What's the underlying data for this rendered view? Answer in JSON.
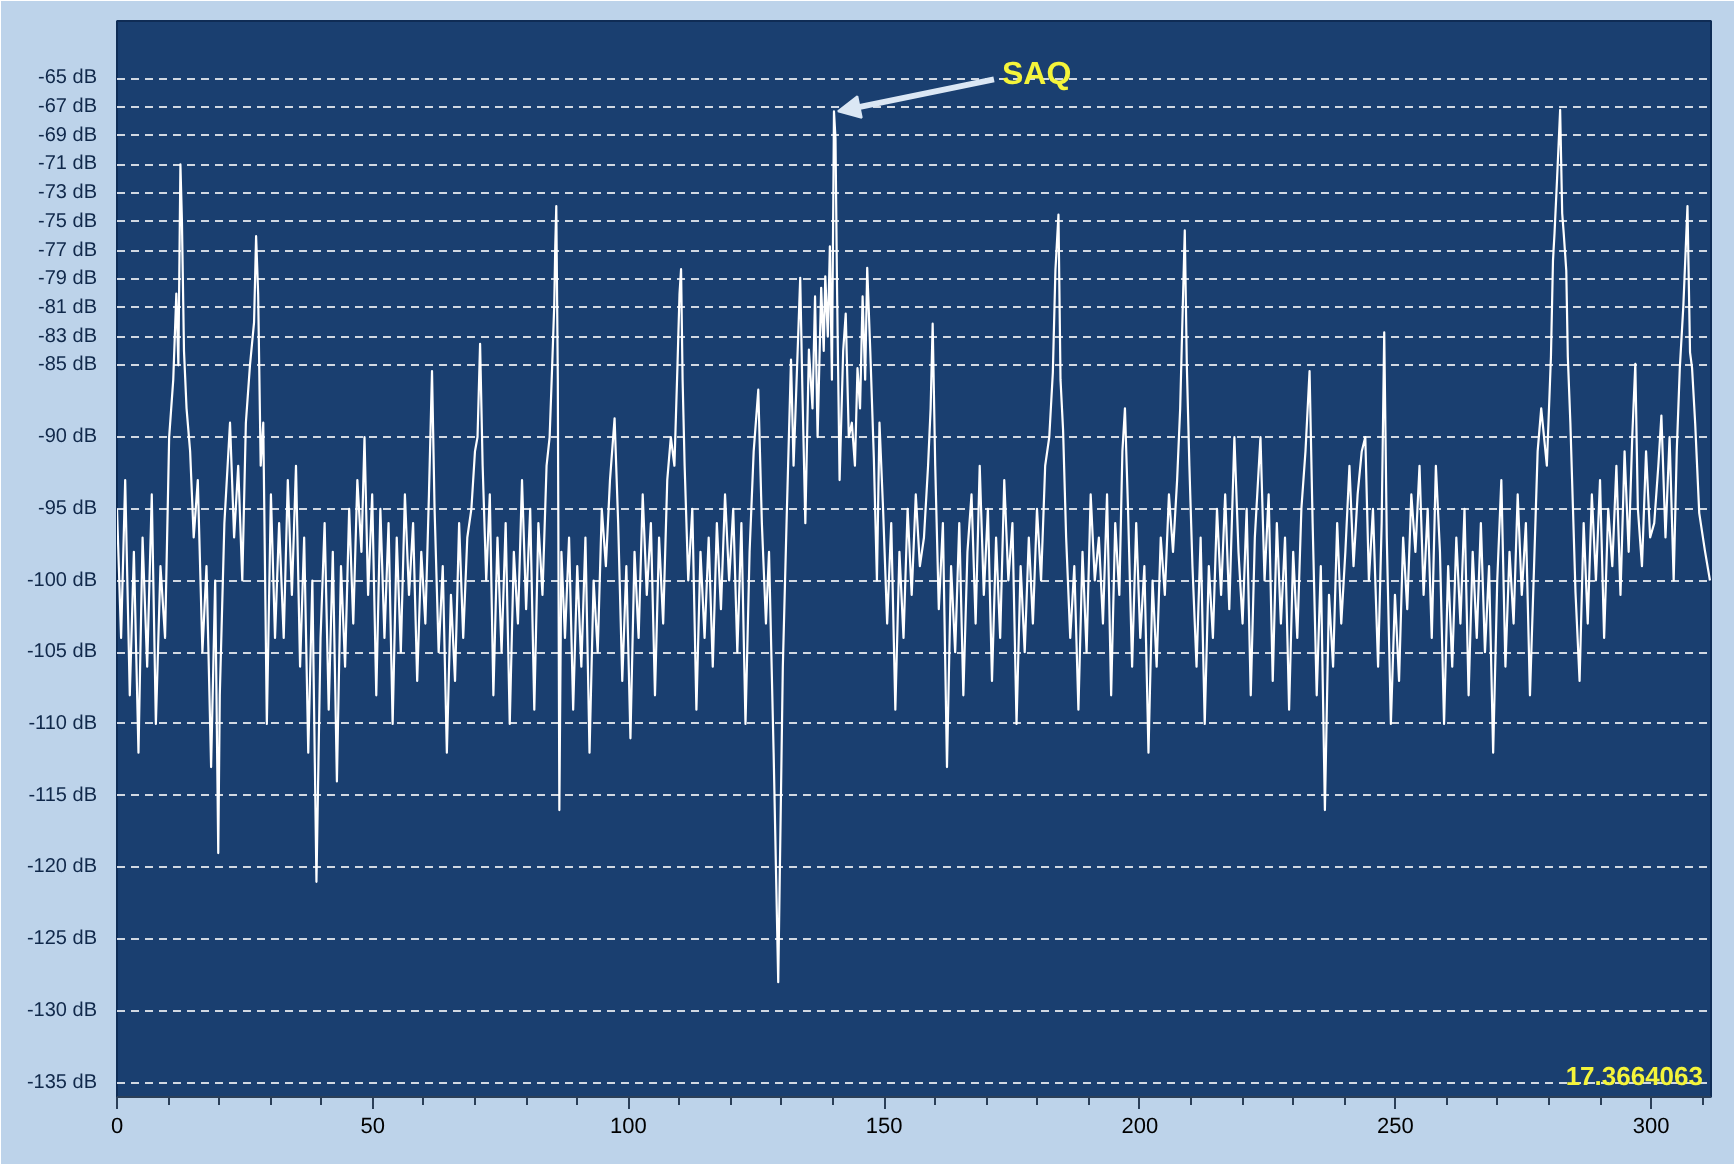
{
  "chart_data": {
    "type": "line",
    "x": [
      0.0,
      0.8,
      1.6,
      2.5,
      3.3,
      4.2,
      5.0,
      5.9,
      6.8,
      7.6,
      8.5,
      9.4,
      10.2,
      11.0,
      11.6,
      12.0,
      12.4,
      12.7,
      13.1,
      13.6,
      14.3,
      15.0,
      15.8,
      16.7,
      17.5,
      18.4,
      19.2,
      19.8,
      20.1,
      21.0,
      22.1,
      22.9,
      23.7,
      24.5,
      25.2,
      26.0,
      26.8,
      27.2,
      27.6,
      28.1,
      28.6,
      29.3,
      30.1,
      30.9,
      31.7,
      32.6,
      33.4,
      34.2,
      35.0,
      35.8,
      36.6,
      37.4,
      38.2,
      39.0,
      39.8,
      40.6,
      41.4,
      42.2,
      43.0,
      43.8,
      44.6,
      45.4,
      46.2,
      47.0,
      47.8,
      48.4,
      49.1,
      49.9,
      50.7,
      51.5,
      52.3,
      53.1,
      53.9,
      54.7,
      55.5,
      56.3,
      57.1,
      57.9,
      58.7,
      59.5,
      60.3,
      61.0,
      61.6,
      62.1,
      62.9,
      63.7,
      64.5,
      65.3,
      66.1,
      66.9,
      67.7,
      68.5,
      69.3,
      70.0,
      70.5,
      71.0,
      71.5,
      72.2,
      72.9,
      73.6,
      74.4,
      75.2,
      76.0,
      76.8,
      77.6,
      78.4,
      79.2,
      80.0,
      80.8,
      81.6,
      82.4,
      83.2,
      84.0,
      84.6,
      85.1,
      85.5,
      85.7,
      85.9,
      86.2,
      86.5,
      86.9,
      87.6,
      88.4,
      89.2,
      90.0,
      90.8,
      91.6,
      92.4,
      93.2,
      94.0,
      94.8,
      95.6,
      96.4,
      97.3,
      98.0,
      98.8,
      99.6,
      100.4,
      101.2,
      102.0,
      102.8,
      103.6,
      104.4,
      105.2,
      106.0,
      106.8,
      107.6,
      108.3,
      109.0,
      109.6,
      110.0,
      110.3,
      110.6,
      111.0,
      111.7,
      112.5,
      113.3,
      114.1,
      114.9,
      115.7,
      116.5,
      117.3,
      118.1,
      118.9,
      119.7,
      120.5,
      121.3,
      122.1,
      122.9,
      123.7,
      124.5,
      125.4,
      126.1,
      126.9,
      127.5,
      128.4,
      129.3,
      130.2,
      131.0,
      131.8,
      132.3,
      132.8,
      133.6,
      134.0,
      134.6,
      135.3,
      136.0,
      136.5,
      137.0,
      137.7,
      138.2,
      138.5,
      139.0,
      139.4,
      139.8,
      140.2,
      140.5,
      140.8,
      141.3,
      142.0,
      142.5,
      143.1,
      143.7,
      144.3,
      144.8,
      145.3,
      145.8,
      146.3,
      146.7,
      147.3,
      148.0,
      148.6,
      149.1,
      149.8,
      150.6,
      151.4,
      152.2,
      153.0,
      153.8,
      154.6,
      155.4,
      156.2,
      157.0,
      157.8,
      158.6,
      159.1,
      159.5,
      160.0,
      160.7,
      161.5,
      162.3,
      163.1,
      163.9,
      164.7,
      165.5,
      166.3,
      167.1,
      167.9,
      168.7,
      169.5,
      170.3,
      171.1,
      171.9,
      172.7,
      173.5,
      174.3,
      175.1,
      175.9,
      176.7,
      177.5,
      178.3,
      179.1,
      179.9,
      180.7,
      181.5,
      182.3,
      183.0,
      183.5,
      184.1,
      184.5,
      185.0,
      185.6,
      186.4,
      187.2,
      188.0,
      188.8,
      189.6,
      190.4,
      191.2,
      192.0,
      192.8,
      193.6,
      194.4,
      195.2,
      196.0,
      196.6,
      197.1,
      197.7,
      198.5,
      199.3,
      200.1,
      200.9,
      201.7,
      202.5,
      203.3,
      204.1,
      204.9,
      205.7,
      206.5,
      207.3,
      207.9,
      208.4,
      208.8,
      209.2,
      209.7,
      210.3,
      211.1,
      211.9,
      212.7,
      213.5,
      214.3,
      215.1,
      215.9,
      216.7,
      217.5,
      218.5,
      219.3,
      220.1,
      220.9,
      221.7,
      222.5,
      223.6,
      224.4,
      225.2,
      226.0,
      226.8,
      227.6,
      228.4,
      229.2,
      230.0,
      230.8,
      231.6,
      232.4,
      233.2,
      233.8,
      234.6,
      235.4,
      236.2,
      237.0,
      237.8,
      238.6,
      239.4,
      240.2,
      241.0,
      241.8,
      242.6,
      243.4,
      244.1,
      244.8,
      245.6,
      246.6,
      247.3,
      247.8,
      248.3,
      249.1,
      249.9,
      250.7,
      251.5,
      252.3,
      253.1,
      253.9,
      254.7,
      255.5,
      256.3,
      257.1,
      257.9,
      258.7,
      259.5,
      260.3,
      261.1,
      261.9,
      262.7,
      263.5,
      264.3,
      265.1,
      265.9,
      266.7,
      267.5,
      268.3,
      269.1,
      269.9,
      270.7,
      271.5,
      272.3,
      273.1,
      273.9,
      274.7,
      275.5,
      276.3,
      277.1,
      277.8,
      278.5,
      279.6,
      280.4,
      280.8,
      281.1,
      281.6,
      282.2,
      282.6,
      282.9,
      283.4,
      283.7,
      284.2,
      285.2,
      286.0,
      286.8,
      287.6,
      288.4,
      289.2,
      290.0,
      290.8,
      291.6,
      292.4,
      293.2,
      294.0,
      294.8,
      295.6,
      296.3,
      296.9,
      297.4,
      298.2,
      299.0,
      299.8,
      300.6,
      301.4,
      302.0,
      302.8,
      303.6,
      304.4,
      305.0,
      305.6,
      306.3,
      307.1,
      307.6,
      308.0,
      308.6,
      309.4,
      310.5,
      311.5
    ],
    "series": [
      {
        "color": "#ffffff",
        "values": [
          -95,
          -104,
          -93,
          -108,
          -98,
          -112,
          -97,
          -106,
          -94,
          -110,
          -99,
          -104,
          -90,
          -86,
          -80,
          -85,
          -71,
          -75,
          -84,
          -88,
          -91,
          -97,
          -93,
          -105,
          -99,
          -113,
          -100,
          -119,
          -108,
          -96,
          -89,
          -97,
          -92,
          -100,
          -89,
          -85,
          -82,
          -76,
          -80,
          -92,
          -89,
          -110,
          -94,
          -104,
          -96,
          -104,
          -93,
          -101,
          -92,
          -106,
          -97,
          -112,
          -100,
          -121,
          -104,
          -96,
          -109,
          -98,
          -114,
          -99,
          -106,
          -95,
          -103,
          -93,
          -98,
          -90,
          -101,
          -94,
          -108,
          -95,
          -104,
          -96,
          -110,
          -97,
          -105,
          -94,
          -101,
          -96,
          -107,
          -98,
          -103,
          -94,
          -85.4,
          -95,
          -105,
          -99,
          -112,
          -101,
          -107,
          -96,
          -104,
          -97,
          -95,
          -91,
          -90,
          -83.5,
          -92,
          -100,
          -94,
          -108,
          -97,
          -105,
          -96,
          -110,
          -98,
          -103,
          -93,
          -102,
          -95,
          -109,
          -96,
          -101,
          -92,
          -90,
          -85,
          -80.8,
          -76.7,
          -73.9,
          -86,
          -116,
          -98,
          -104,
          -97,
          -109,
          -99,
          -106,
          -97,
          -112,
          -100,
          -105,
          -95,
          -99,
          -93,
          -88.7,
          -96,
          -107,
          -99,
          -111,
          -98,
          -104,
          -94,
          -101,
          -96,
          -108,
          -97,
          -103,
          -93,
          -90,
          -92,
          -85,
          -80,
          -78.3,
          -86,
          -92,
          -100,
          -95,
          -109,
          -98,
          -104,
          -97,
          -106,
          -96,
          -102,
          -94,
          -100,
          -95,
          -105,
          -96,
          -110,
          -98,
          -91,
          -86.7,
          -96,
          -103,
          -98,
          -112,
          -128,
          -106,
          -95,
          -84.6,
          -92,
          -87,
          -78.9,
          -86.3,
          -96,
          -83.9,
          -88,
          -80.2,
          -90,
          -79.6,
          -84,
          -78.8,
          -83,
          -76.7,
          -86,
          -67.3,
          -69.2,
          -79.6,
          -93,
          -84,
          -81.4,
          -90,
          -89,
          -92,
          -85.2,
          -88,
          -80.2,
          -86,
          -78.2,
          -84,
          -91.5,
          -100,
          -89,
          -95,
          -103,
          -96,
          -109,
          -98,
          -104,
          -95,
          -101,
          -94,
          -99,
          -97,
          -92,
          -88,
          -82.1,
          -92,
          -102,
          -96,
          -113,
          -99,
          -105,
          -96,
          -108,
          -98,
          -94,
          -103,
          -92,
          -101,
          -95,
          -107,
          -97,
          -104,
          -93,
          -100,
          -96,
          -110,
          -99,
          -105,
          -97,
          -103,
          -95,
          -100,
          -92,
          -90,
          -85.5,
          -78.4,
          -74.5,
          -86,
          -89.5,
          -97,
          -104,
          -99,
          -109,
          -98,
          -105,
          -94,
          -100,
          -97,
          -103,
          -94,
          -108,
          -96,
          -101,
          -91,
          -88,
          -95,
          -106,
          -96,
          -104,
          -99,
          -112,
          -100,
          -106,
          -97,
          -101,
          -94,
          -98,
          -93,
          -88,
          -81,
          -75.6,
          -85,
          -92,
          -99,
          -106,
          -97,
          -110,
          -99,
          -104,
          -95,
          -101,
          -94,
          -102,
          -90,
          -98,
          -103,
          -95,
          -108,
          -97,
          -90,
          -100,
          -94,
          -107,
          -96,
          -103,
          -97,
          -109,
          -98,
          -104,
          -95,
          -91,
          -85.4,
          -96,
          -108,
          -99,
          -116,
          -101,
          -106,
          -96,
          -103,
          -98,
          -92,
          -99,
          -94,
          -91,
          -90,
          -100,
          -95,
          -106,
          -96,
          -82.7,
          -97,
          -110,
          -101,
          -107,
          -97,
          -102,
          -94,
          -98,
          -92,
          -101,
          -95,
          -104,
          -92,
          -98,
          -110,
          -99,
          -106,
          -97,
          -103,
          -95,
          -108,
          -98,
          -104,
          -96,
          -105,
          -99,
          -112,
          -100,
          -93,
          -106,
          -98,
          -103,
          -94,
          -101,
          -96,
          -108,
          -99,
          -91,
          -88,
          -92,
          -84.4,
          -77.7,
          -75.8,
          -72,
          -67.2,
          -74.4,
          -75.8,
          -78.4,
          -84.4,
          -89,
          -100.8,
          -107,
          -96,
          -103,
          -94,
          -100,
          -93,
          -104,
          -95,
          -99,
          -92,
          -101,
          -91,
          -98,
          -90,
          -84.9,
          -95,
          -99,
          -91,
          -97,
          -96,
          -92,
          -88.5,
          -97,
          -90,
          -100,
          -91,
          -85.2,
          -80.8,
          -73.9,
          -84.1,
          -85.2,
          -89,
          -95.3,
          -97.9,
          -100
        ]
      }
    ],
    "annotations": [
      {
        "text": "SAQ",
        "x": 140.2,
        "y": -67.3
      },
      "17.3664063"
    ],
    "xlim": [
      0,
      311.7
    ],
    "ylim": [
      -136,
      -61
    ],
    "xticks": [
      0,
      {
        "value": 10,
        "label": null
      },
      {
        "value": 20,
        "label": null
      },
      {
        "value": 30,
        "label": null
      },
      {
        "value": 40,
        "label": null
      },
      50,
      {
        "value": 60,
        "label": null
      },
      {
        "value": 70,
        "label": null
      },
      {
        "value": 80,
        "label": null
      },
      {
        "value": 90,
        "label": null
      },
      100,
      {
        "value": 110,
        "label": null
      },
      {
        "value": 120,
        "label": null
      },
      {
        "value": 130,
        "label": null
      },
      {
        "value": 140,
        "label": null
      },
      150,
      {
        "value": 160,
        "label": null
      },
      {
        "value": 170,
        "label": null
      },
      {
        "value": 180,
        "label": null
      },
      {
        "value": 190,
        "label": null
      },
      200,
      {
        "value": 210,
        "label": null
      },
      {
        "value": 220,
        "label": null
      },
      {
        "value": 230,
        "label": null
      },
      {
        "value": 240,
        "label": null
      },
      250,
      {
        "value": 260,
        "label": null
      },
      {
        "value": 270,
        "label": null
      },
      {
        "value": 280,
        "label": null
      },
      {
        "value": 290,
        "label": null
      },
      300,
      {
        "value": 310,
        "label": null
      }
    ],
    "yticks": [
      {
        "value": -65,
        "label": "-65 dB"
      },
      {
        "value": -67,
        "label": "-67 dB"
      },
      {
        "value": -69,
        "label": "-69 dB"
      },
      {
        "value": -71,
        "label": "-71 dB"
      },
      {
        "value": -73,
        "label": "-73 dB"
      },
      {
        "value": -75,
        "label": "-75 dB"
      },
      {
        "value": -77,
        "label": "-77 dB"
      },
      {
        "value": -79,
        "label": "-79 dB"
      },
      {
        "value": -81,
        "label": "-81 dB"
      },
      {
        "value": -83,
        "label": "-83 dB"
      },
      {
        "value": -85,
        "label": "-85 dB"
      },
      {
        "value": -90,
        "label": "-90 dB"
      },
      {
        "value": -95,
        "label": "-95 dB"
      },
      {
        "value": -100,
        "label": "-100 dB"
      },
      {
        "value": -105,
        "label": "-105 dB"
      },
      {
        "value": -110,
        "label": "-110 dB"
      },
      {
        "value": -115,
        "label": "-115 dB"
      },
      {
        "value": -120,
        "label": "-120 dB"
      },
      {
        "value": -125,
        "label": "-125 dB"
      },
      {
        "value": -130,
        "label": "-130 dB"
      },
      {
        "value": -135,
        "label": "-135 dB"
      }
    ],
    "grid": "y"
  }
}
